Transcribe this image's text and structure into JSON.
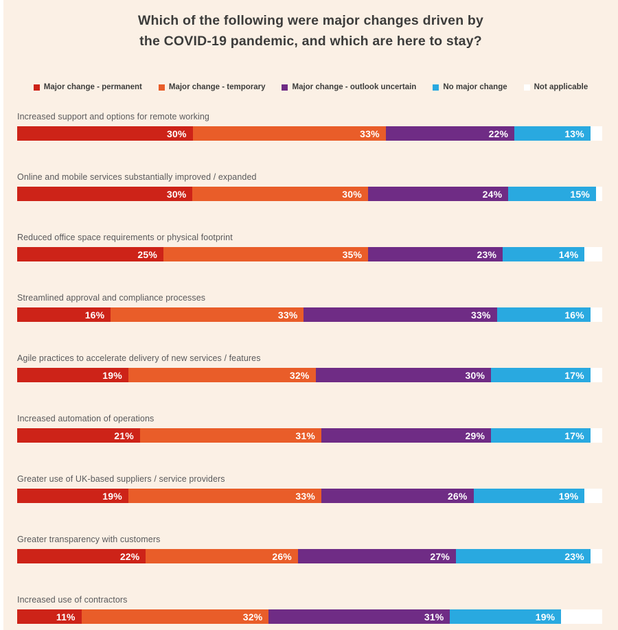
{
  "title": {
    "line1": "Which of the following were major changes driven by",
    "line2": "the COVID-19 pandemic, and which are here to stay?"
  },
  "legend": [
    {
      "label": "Major change - permanent",
      "color": "#CD2318"
    },
    {
      "label": "Major change - temporary",
      "color": "#E95D29"
    },
    {
      "label": "Major change - outlook uncertain",
      "color": "#6F2C85"
    },
    {
      "label": "No major change",
      "color": "#29A9E0"
    },
    {
      "label": "Not applicable",
      "color": "#FFFFFF"
    }
  ],
  "colors": {
    "background": "#FBF0E5",
    "title_text": "#3C3C3B",
    "category_text": "#59595B",
    "value_text": "#FFFFFF"
  },
  "chart_data": {
    "type": "bar",
    "orientation": "horizontal-stacked",
    "unit": "%",
    "xlim": [
      0,
      100
    ],
    "grid": false,
    "legend_position": "top-center",
    "value_labels": "inside-right, white bold; not shown for Not applicable",
    "categories": [
      "Increased support and options for remote working",
      "Online and mobile services substantially improved / expanded",
      "Reduced office space requirements or physical footprint",
      "Streamlined approval and compliance processes",
      "Agile practices to accelerate delivery of new services / features",
      "Increased automation of operations",
      "Greater use of UK-based suppliers / service providers",
      "Greater transparency with customers",
      "Increased use of contractors"
    ],
    "series": [
      {
        "name": "Major change - permanent",
        "color": "#CD2318",
        "show_labels": true,
        "values": [
          30,
          30,
          25,
          16,
          19,
          21,
          19,
          22,
          11
        ]
      },
      {
        "name": "Major change - temporary",
        "color": "#E95D29",
        "show_labels": true,
        "values": [
          33,
          30,
          35,
          33,
          32,
          31,
          33,
          26,
          32
        ]
      },
      {
        "name": "Major change - outlook uncertain",
        "color": "#6F2C85",
        "show_labels": true,
        "values": [
          22,
          24,
          23,
          33,
          30,
          29,
          26,
          27,
          31
        ]
      },
      {
        "name": "No major change",
        "color": "#29A9E0",
        "show_labels": true,
        "values": [
          13,
          15,
          14,
          16,
          17,
          17,
          19,
          23,
          19
        ]
      },
      {
        "name": "Not applicable",
        "color": "#FFFFFF",
        "show_labels": false,
        "values": [
          2,
          1,
          3,
          2,
          2,
          2,
          3,
          2,
          7
        ]
      }
    ]
  }
}
